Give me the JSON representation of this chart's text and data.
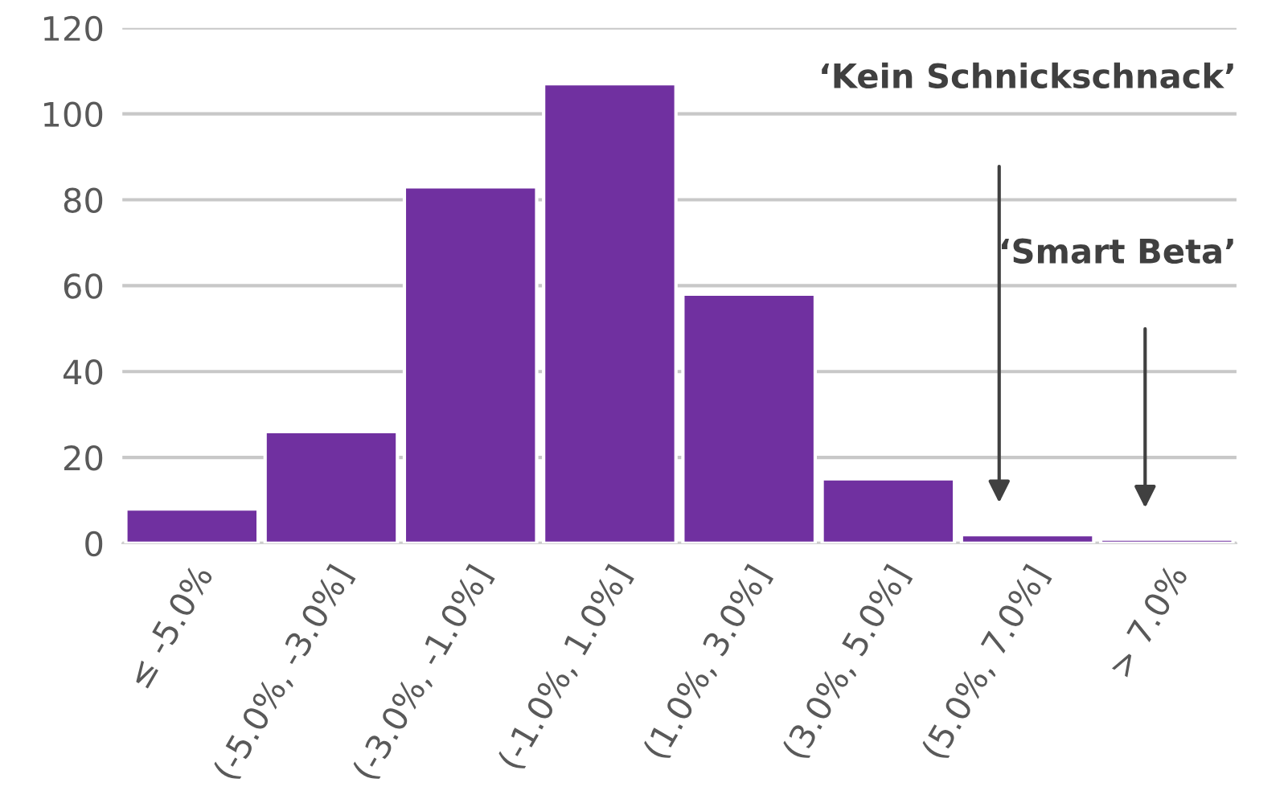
{
  "chart_data": {
    "type": "bar",
    "categories": [
      "≤ -5.0%",
      "(-5.0%, -3.0%]",
      "(-3.0%, -1.0%]",
      "(-1.0%, 1.0%]",
      "(1.0%, 3.0%]",
      "(3.0%, 5.0%]",
      "(5.0%, 7.0%]",
      "> 7.0%"
    ],
    "values": [
      8,
      26,
      83,
      107,
      58,
      15,
      2,
      1
    ],
    "color": "#7030a0",
    "ylim": [
      0,
      120
    ],
    "yticks": [
      0,
      20,
      40,
      60,
      80,
      100,
      120
    ],
    "grid": "y",
    "annotations": [
      "‘Kein Schnickschnack’",
      "‘Smart Beta’"
    ]
  }
}
